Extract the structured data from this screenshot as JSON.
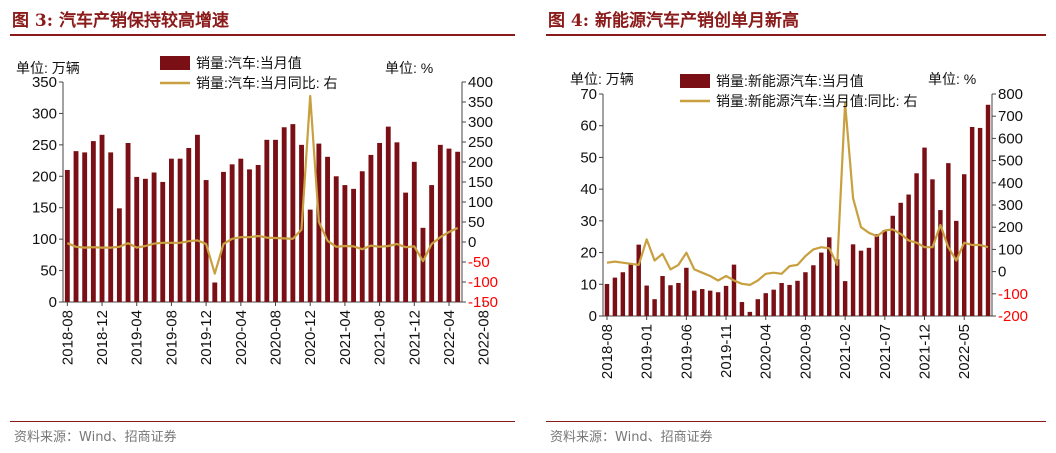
{
  "source_prefix": "资料来源：",
  "source_suffix": "Wind、招商证券",
  "chart_data": [
    {
      "type": "bar+line",
      "title": "图 3:  汽车产销保持较高增速",
      "y_left_unit": "单位:  万辆",
      "y_right_unit": "单位:  %",
      "legend_bar": "销量:汽车:当月值",
      "legend_line": "销量:汽车:当月同比:  右",
      "y_left_lim": [
        0,
        350
      ],
      "y_left_ticks": [
        0,
        50,
        100,
        150,
        200,
        250,
        300,
        350
      ],
      "y_right_lim": [
        -150,
        400
      ],
      "y_right_ticks": [
        -150,
        -100,
        -50,
        0,
        50,
        100,
        150,
        200,
        250,
        300,
        350,
        400
      ],
      "x_tick_labels": [
        "2018-08",
        "2018-12",
        "2019-04",
        "2019-08",
        "2019-12",
        "2020-04",
        "2020-08",
        "2020-12",
        "2021-04",
        "2021-08",
        "2021-12",
        "2022-04",
        "2022-08"
      ],
      "x_tick_every": 4,
      "bar_color": "#7a0f16",
      "line_color": "#c8a040",
      "negative_tick_color": "#ff0000",
      "bar_values": [
        210,
        240,
        238,
        256,
        266,
        238,
        149,
        253,
        199,
        196,
        206,
        191,
        228,
        228,
        245,
        266,
        194,
        31,
        207,
        219,
        228,
        211,
        218,
        258,
        258,
        278,
        283,
        250,
        147,
        252,
        231,
        200,
        186,
        180,
        208,
        234,
        253,
        279,
        254,
        174,
        223,
        118,
        186,
        250,
        244,
        239
      ],
      "line_values": [
        -3,
        -12,
        -14,
        -13,
        -14,
        -14,
        -12,
        -3,
        -14,
        -10,
        -4,
        -2,
        -2,
        -2,
        2,
        4,
        -5,
        -79,
        -5,
        8,
        12,
        12,
        15,
        11,
        10,
        9,
        8,
        31,
        365,
        50,
        3,
        -12,
        -10,
        -11,
        -18,
        -9,
        -12,
        -10,
        -5,
        -13,
        -11,
        -48,
        -5,
        12,
        25,
        35
      ]
    },
    {
      "type": "bar+line",
      "title": "图 4:  新能源汽车产销创单月新高",
      "y_left_unit": "单位:  万辆",
      "y_right_unit": "单位:  %",
      "legend_bar": "销量:新能源汽车:当月值",
      "legend_line": "销量:新能源汽车:当月值:同比:  右",
      "y_left_lim": [
        0,
        70
      ],
      "y_left_ticks": [
        0,
        10,
        20,
        30,
        40,
        50,
        60,
        70
      ],
      "y_right_lim": [
        -200,
        800
      ],
      "y_right_ticks": [
        -200,
        -100,
        0,
        100,
        200,
        300,
        400,
        500,
        600,
        700,
        800
      ],
      "x_tick_labels": [
        "2018-08",
        "2019-01",
        "2019-06",
        "2019-11",
        "2020-04",
        "2020-09",
        "2021-02",
        "2021-07",
        "2021-12",
        "2022-05"
      ],
      "x_tick_every": 5,
      "bar_color": "#7a0f16",
      "line_color": "#c8a040",
      "negative_tick_color": "#ff0000",
      "bar_values": [
        10.1,
        12.1,
        13.8,
        16.6,
        22.5,
        9.6,
        5.3,
        12.6,
        9.7,
        10.4,
        15.2,
        8.0,
        8.5,
        8.0,
        7.5,
        9.5,
        16.2,
        4.4,
        1.3,
        5.3,
        7.2,
        8.3,
        10.4,
        9.8,
        11.1,
        13.8,
        16.0,
        20.0,
        24.8,
        17.9,
        11.0,
        22.6,
        20.6,
        21.5,
        25.8,
        27.1,
        31.6,
        35.7,
        38.3,
        45.0,
        53.1,
        43.1,
        33.4,
        48.2,
        30.0,
        44.7,
        59.6,
        59.3,
        66.6
      ],
      "line_values": [
        40,
        45,
        40,
        35,
        30,
        145,
        50,
        80,
        10,
        30,
        85,
        10,
        -5,
        -20,
        -40,
        -20,
        -40,
        -55,
        -60,
        -40,
        -10,
        -5,
        -10,
        25,
        30,
        70,
        100,
        110,
        105,
        30,
        760,
        330,
        200,
        175,
        160,
        185,
        190,
        170,
        140,
        130,
        110,
        110,
        210,
        110,
        50,
        130,
        120,
        120,
        110
      ]
    }
  ]
}
